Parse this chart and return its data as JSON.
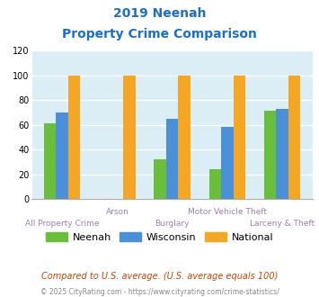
{
  "title_line1": "2019 Neenah",
  "title_line2": "Property Crime Comparison",
  "title_color": "#1a6fcc",
  "categories": [
    "All Property Crime",
    "Arson",
    "Burglary",
    "Motor Vehicle Theft",
    "Larceny & Theft"
  ],
  "neenah": [
    61,
    0,
    32,
    24,
    71
  ],
  "wisconsin": [
    70,
    0,
    65,
    58,
    73
  ],
  "national": [
    100,
    100,
    100,
    100,
    100
  ],
  "neenah_color": "#6abf3a",
  "wisconsin_color": "#4a90d9",
  "national_color": "#f5a623",
  "ylim": [
    0,
    120
  ],
  "yticks": [
    0,
    20,
    40,
    60,
    80,
    100,
    120
  ],
  "background_color": "#dceef5",
  "grid_color": "#ffffff",
  "xlabel_color": "#9e7fb0",
  "footnote1": "Compared to U.S. average. (U.S. average equals 100)",
  "footnote2": "© 2025 CityRating.com - https://www.cityrating.com/crime-statistics/",
  "footnote1_color": "#cc4400",
  "footnote2_color": "#888888",
  "legend_labels": [
    "Neenah",
    "Wisconsin",
    "National"
  ],
  "bar_width": 0.22,
  "group_positions": [
    0,
    1,
    2,
    3,
    4
  ]
}
